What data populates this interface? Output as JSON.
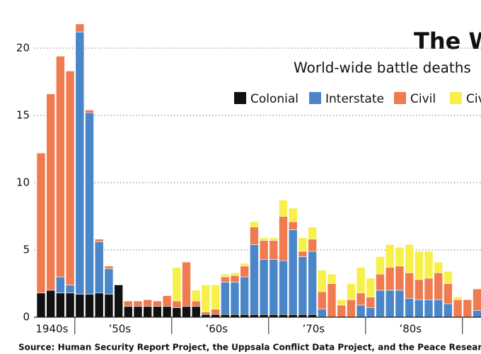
{
  "chart_data": {
    "type": "stacked-bar",
    "title": "The W",
    "subtitle": "World-wide battle deaths",
    "source": "Source: Human Security Report Project, the Uppsala Conflict Data Project, and the Peace Research In",
    "categories": [
      "1940s",
      null,
      null,
      null,
      "’50s",
      null,
      null,
      null,
      null,
      null,
      null,
      null,
      null,
      null,
      "’60s",
      null,
      null,
      null,
      null,
      null,
      null,
      null,
      null,
      null,
      "’70s",
      null,
      null,
      null,
      null,
      null,
      null,
      null,
      null,
      null,
      "’80s",
      null,
      null,
      null,
      null,
      null,
      null,
      null,
      null,
      null,
      null,
      null
    ],
    "series": [
      {
        "name": "Colonial",
        "color": "#111111",
        "values": [
          1.8,
          2.0,
          1.8,
          1.8,
          1.7,
          1.7,
          1.8,
          1.7,
          2.4,
          0.8,
          0.8,
          0.8,
          0.8,
          0.8,
          0.7,
          0.8,
          0.8,
          0.2,
          0.2,
          0.2,
          0.2,
          0.2,
          0.2,
          0.2,
          0.2,
          0.2,
          0.2,
          0.2,
          0.2,
          0,
          0,
          0,
          0,
          0,
          0,
          0,
          0,
          0,
          0,
          0,
          0,
          0,
          0,
          0,
          0,
          0
        ]
      },
      {
        "name": "Interstate",
        "color": "#4a86c8",
        "values": [
          0,
          0,
          1.2,
          0.6,
          19.5,
          13.5,
          3.8,
          1.9,
          0,
          0,
          0,
          0,
          0,
          0,
          0,
          0,
          0,
          0,
          0,
          2.4,
          2.4,
          2.8,
          5.2,
          4.1,
          4.1,
          4.0,
          6.3,
          4.3,
          4.7,
          0.6,
          0,
          0,
          0,
          0.9,
          0.7,
          2.0,
          2.0,
          2.0,
          1.4,
          1.3,
          1.3,
          1.3,
          1.0,
          0,
          0,
          0.5
        ]
      },
      {
        "name": "Civil",
        "color": "#f07b50",
        "values": [
          10.4,
          14.6,
          16.4,
          15.9,
          0.6,
          0.2,
          0.2,
          0.2,
          0,
          0.4,
          0.4,
          0.5,
          0.4,
          0.8,
          0.5,
          3.3,
          0.4,
          0.2,
          0.4,
          0.4,
          0.5,
          0.8,
          1.3,
          1.4,
          1.4,
          3.3,
          0.6,
          0.4,
          0.9,
          1.3,
          2.5,
          0.9,
          1.3,
          0.9,
          0.8,
          1.2,
          1.7,
          1.8,
          1.9,
          1.5,
          1.6,
          2.0,
          1.5,
          1.3,
          1.3,
          1.6
        ]
      },
      {
        "name": "Civ",
        "color": "#f7ef4a",
        "values": [
          0,
          0,
          0,
          0,
          0,
          0,
          0,
          0,
          0,
          0,
          0,
          0,
          0,
          0,
          2.5,
          0,
          0.8,
          2.0,
          1.8,
          0.2,
          0.2,
          0.2,
          0.4,
          0.2,
          0.2,
          1.2,
          1.0,
          1.0,
          0.9,
          1.6,
          0.7,
          0.4,
          1.2,
          1.9,
          1.4,
          1.3,
          1.7,
          1.4,
          2.1,
          2.1,
          2.0,
          0.8,
          0.9,
          0.2,
          0,
          0
        ]
      }
    ],
    "ylim": [
      0,
      20
    ],
    "yticks": [
      0,
      5,
      10,
      15,
      20
    ],
    "grid": true
  }
}
